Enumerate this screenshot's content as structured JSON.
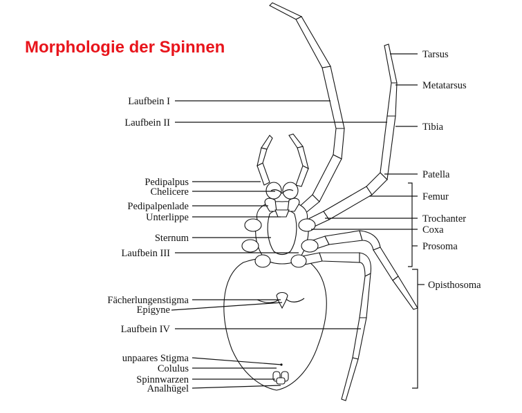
{
  "title": "Morphologie der Spinnen",
  "labels_left": {
    "laufbein1": "Laufbein I",
    "laufbein2": "Laufbein II",
    "pedipalpus": "Pedipalpus",
    "chelicere": "Chelicere",
    "pedipalpenlade": "Pedipalpenlade",
    "unterlippe": "Unterlippe",
    "sternum": "Sternum",
    "laufbein3": "Laufbein III",
    "faecherlungenstigma": "Fächerlungenstigma",
    "epigyne": "Epigyne",
    "laufbein4": "Laufbein IV",
    "unpaares_stigma": "unpaares Stigma",
    "colulus": "Colulus",
    "spinnwarzen": "Spinnwarzen",
    "analhuegel": "Analhügel"
  },
  "labels_right": {
    "tarsus": "Tarsus",
    "metatarsus": "Metatarsus",
    "tibia": "Tibia",
    "patella": "Patella",
    "femur": "Femur",
    "trochanter": "Trochanter",
    "coxa": "Coxa",
    "prosoma": "Prosoma",
    "opisthosoma": "Opisthosoma"
  }
}
